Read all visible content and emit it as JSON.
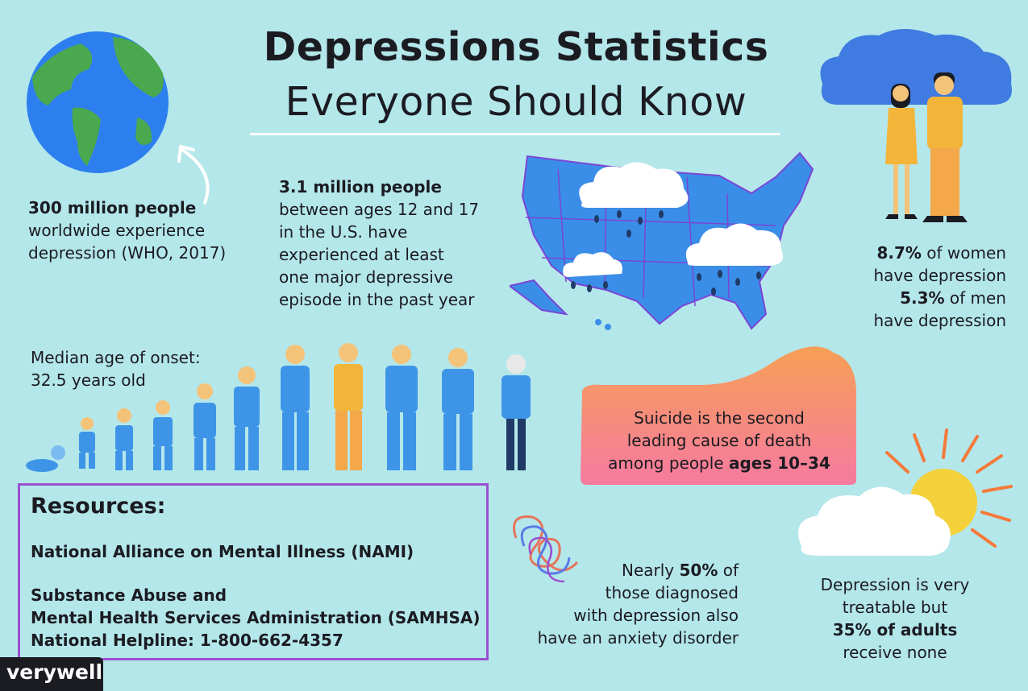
{
  "title": {
    "line1": "Depressions Statistics",
    "line2": "Everyone Should Know"
  },
  "world": {
    "bold": "300 million people",
    "line2": "worldwide experience",
    "line3": "depression (WHO, 2017)"
  },
  "youth": {
    "bold": "3.1 million people",
    "lines": [
      "between ages 12 and 17",
      "in the U.S. have",
      "experienced at least",
      "one major depressive",
      "episode in the past year"
    ]
  },
  "gender": {
    "women_bold": "8.7%",
    "women_rest": " of women",
    "women_line2": "have depression",
    "men_bold": "5.3%",
    "men_rest": " of men",
    "men_line2": "have depression"
  },
  "onset": {
    "line1": "Median age of onset:",
    "line2": "32.5 years old"
  },
  "suicide": {
    "line1": "Suicide is the second",
    "line2": "leading cause of death",
    "line3_pre": "among people ",
    "line3_bold": "ages 10–34"
  },
  "anxiety": {
    "l1_pre": "Nearly ",
    "l1_bold": "50%",
    "l1_post": " of",
    "l2": "those diagnosed",
    "l3": "with depression also",
    "l4": "have an anxiety disorder"
  },
  "treatable": {
    "l1": "Depression is very",
    "l2": "treatable but",
    "l3_bold": "35% of adults",
    "l4": "receive none"
  },
  "resources": {
    "heading": "Resources:",
    "nami": "National Alliance on Mental Illness (NAMI)",
    "samhsa1": "Substance Abuse and",
    "samhsa2": "Mental Health Services Administration (SAMHSA)",
    "helpline": "National Helpline: 1-800-662-4357"
  },
  "brand": "verywell",
  "colors": {
    "background": "#b4e7ea",
    "map_blue": "#3b8ee8",
    "figure_blue": "#3e95e8",
    "figure_orange": "#f4a84a",
    "resources_border": "#9b4fd0"
  },
  "icons": [
    "globe-icon",
    "arrow-icon",
    "us-map-icon",
    "rain-cloud-icon",
    "couple-icon",
    "age-figures-icon",
    "spiral-icon",
    "sun-cloud-icon"
  ]
}
